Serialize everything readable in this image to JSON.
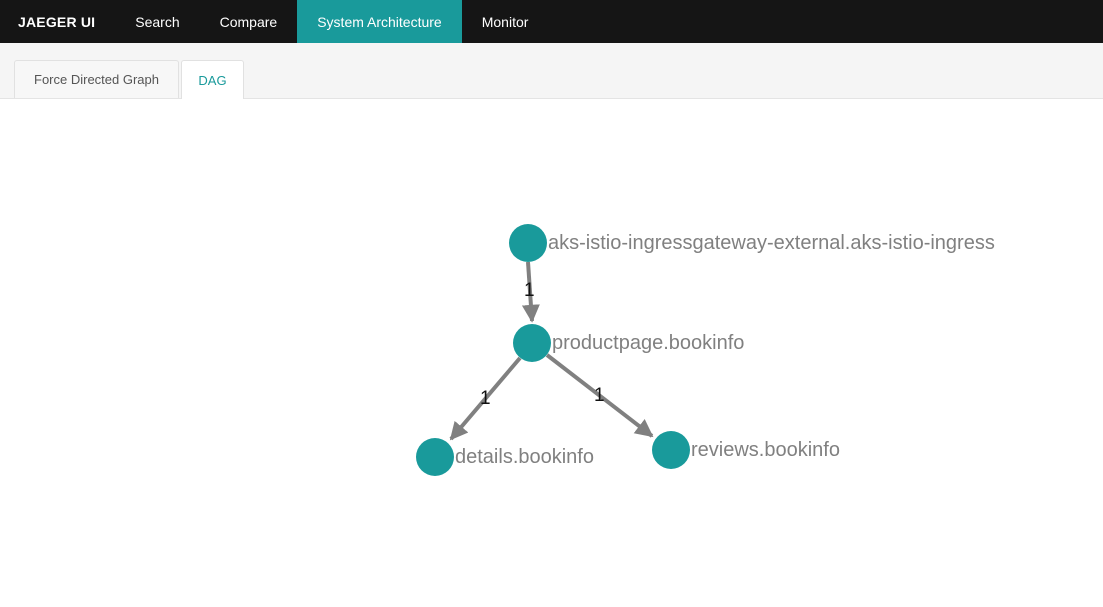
{
  "header": {
    "brand": "JAEGER UI",
    "nav": [
      {
        "label": "Search"
      },
      {
        "label": "Compare"
      },
      {
        "label": "System Architecture"
      },
      {
        "label": "Monitor"
      }
    ]
  },
  "tabs": [
    {
      "label": "Force Directed Graph"
    },
    {
      "label": "DAG"
    }
  ],
  "graph": {
    "node_color": "#199a9b",
    "edge_color": "#808080",
    "nodes": [
      {
        "label": "aks-istio-ingressgateway-external.aks-istio-ingress"
      },
      {
        "label": "productpage.bookinfo"
      },
      {
        "label": "details.bookinfo"
      },
      {
        "label": "reviews.bookinfo"
      }
    ],
    "edges": [
      {
        "from": "aks-istio-ingressgateway-external.aks-istio-ingress",
        "to": "productpage.bookinfo",
        "count": "1"
      },
      {
        "from": "productpage.bookinfo",
        "to": "details.bookinfo",
        "count": "1"
      },
      {
        "from": "productpage.bookinfo",
        "to": "reviews.bookinfo",
        "count": "1"
      }
    ]
  }
}
